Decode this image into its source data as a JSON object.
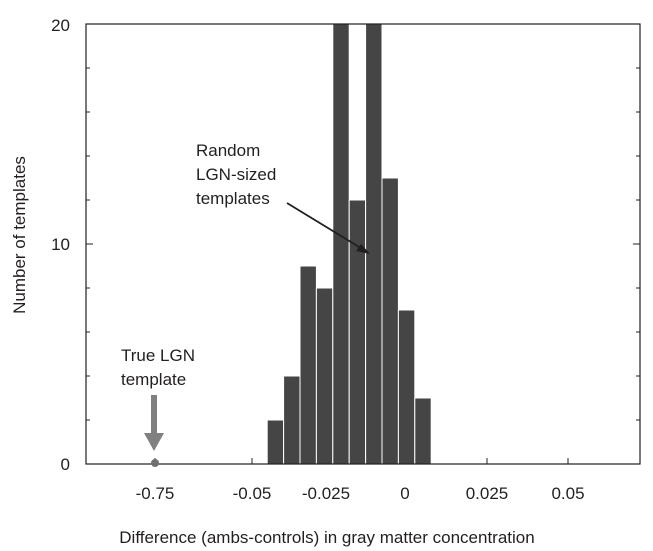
{
  "chart_data": {
    "type": "bar",
    "xlabel": "Difference (ambs-controls) in gray matter concentration",
    "ylabel": "Number of templates",
    "ylim": [
      0,
      20
    ],
    "y_ticks": [
      0,
      10,
      20
    ],
    "grid": false,
    "bar_color": "#454545",
    "x_tick_labels": [
      "-0.75",
      "-0.05",
      "-0.025",
      "0",
      "0.025",
      "0.05"
    ],
    "x_axis_note": "axis is broken between -0.75 and -0.05",
    "bins": [
      {
        "center": -0.0395,
        "count": 2
      },
      {
        "center": -0.0345,
        "count": 4
      },
      {
        "center": -0.0295,
        "count": 9
      },
      {
        "center": -0.0245,
        "count": 8
      },
      {
        "center": -0.0195,
        "count": 20
      },
      {
        "center": -0.0145,
        "count": 12
      },
      {
        "center": -0.0095,
        "count": 20
      },
      {
        "center": -0.0045,
        "count": 13
      },
      {
        "center": 0.0005,
        "count": 7
      },
      {
        "center": 0.0055,
        "count": 3
      }
    ],
    "bin_width": 0.005,
    "clipped_bins_note": "two bins exceed the y-axis maximum of 20",
    "true_value": {
      "x": -0.75,
      "y": 0
    },
    "annotations": [
      {
        "name": "random-templates",
        "lines": [
          "Random",
          "LGN-sized",
          "templates"
        ]
      },
      {
        "name": "true-template",
        "lines": [
          "True LGN",
          "template"
        ]
      }
    ]
  }
}
